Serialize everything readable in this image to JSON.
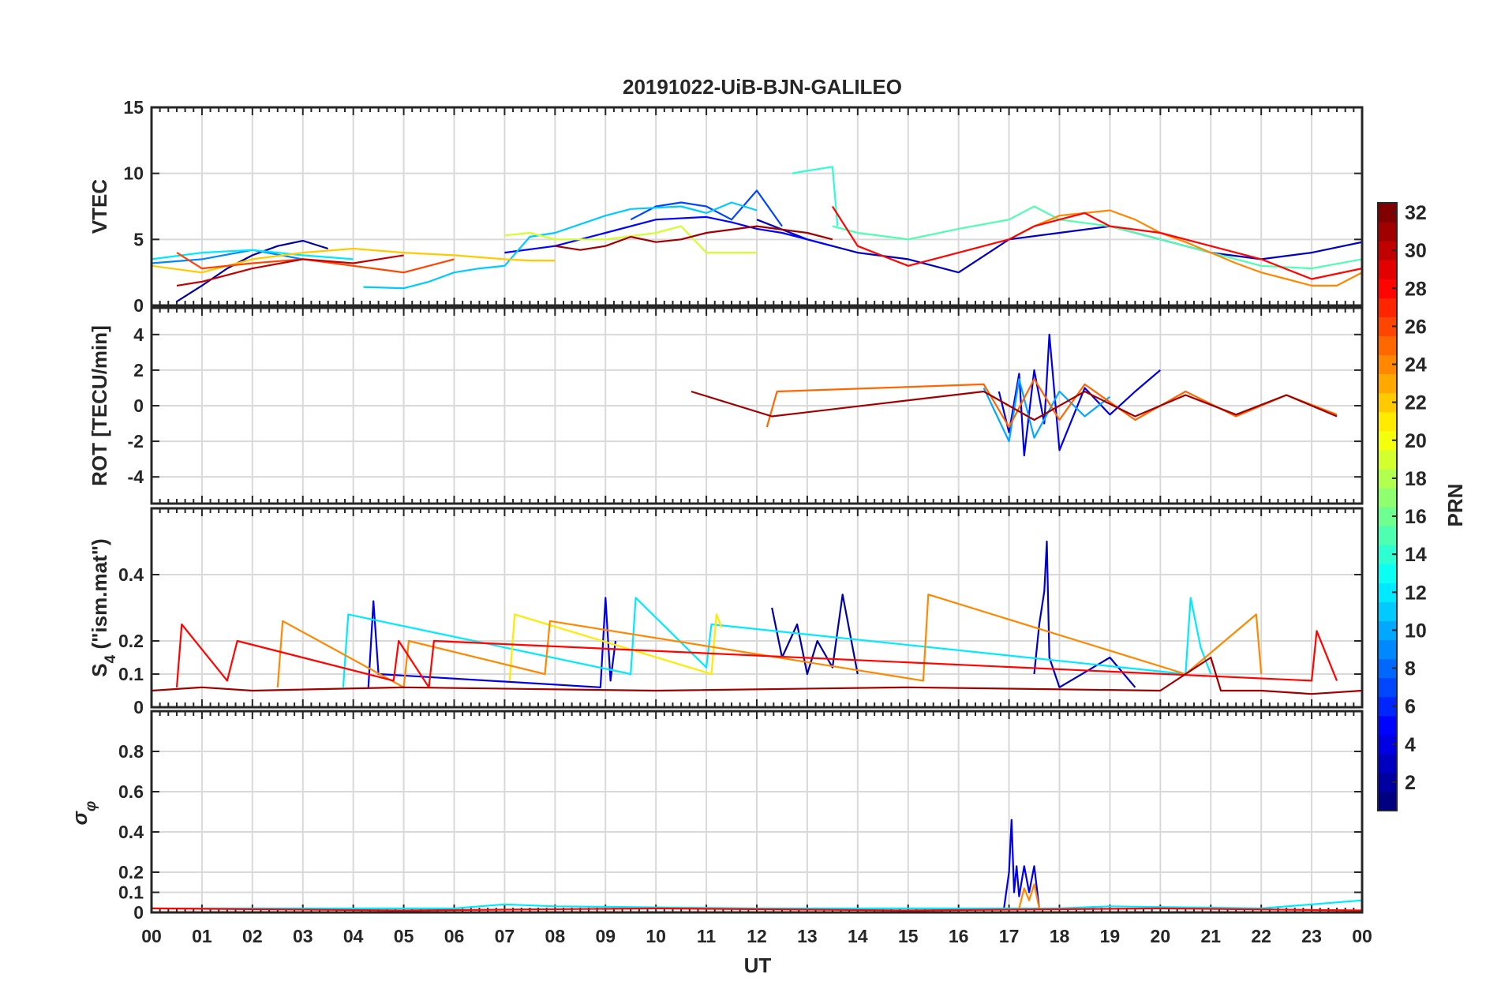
{
  "chart_data": {
    "type": "line",
    "title": "20191022-UiB-BJN-GALILEO",
    "xlabel": "UT",
    "x_ticks": [
      "00",
      "01",
      "02",
      "03",
      "04",
      "05",
      "06",
      "07",
      "08",
      "09",
      "10",
      "11",
      "12",
      "13",
      "14",
      "15",
      "16",
      "17",
      "18",
      "19",
      "20",
      "21",
      "22",
      "23",
      "00"
    ],
    "xlim": [
      0,
      24
    ],
    "grid": true,
    "colorbar": {
      "label": "PRN",
      "range": [
        1,
        32
      ],
      "ticks": [
        "2",
        "4",
        "6",
        "8",
        "10",
        "12",
        "14",
        "16",
        "18",
        "20",
        "22",
        "24",
        "26",
        "28",
        "30",
        "32"
      ],
      "colormap": "jet"
    },
    "panels": [
      {
        "ylabel": "VTEC",
        "ylim": [
          0,
          15
        ],
        "yticks": [
          "0",
          "5",
          "10",
          "15"
        ],
        "series": [
          {
            "prn": 2,
            "x": [
              0.5,
              1.0,
              1.5,
              2.0,
              2.5,
              3.0,
              3.5
            ],
            "y": [
              0.3,
              1.5,
              2.8,
              3.8,
              4.5,
              4.9,
              4.3
            ]
          },
          {
            "prn": 3,
            "x": [
              12.0,
              13.0,
              14.0,
              15.0,
              16.0,
              17.0,
              18.0,
              19.0,
              20.0,
              21.0,
              22.0,
              23.0,
              24.0
            ],
            "y": [
              6.5,
              5.0,
              4.0,
              3.5,
              2.5,
              5.0,
              5.5,
              6.0,
              5.0,
              4.0,
              3.5,
              4.0,
              4.8
            ]
          },
          {
            "prn": 5,
            "x": [
              7.0,
              8.0,
              9.0,
              10.0,
              11.0,
              11.5,
              12.0,
              12.5,
              13.0,
              13.5
            ],
            "y": [
              4.0,
              4.5,
              5.5,
              6.5,
              6.7,
              6.3,
              5.8,
              5.5,
              5.0,
              4.5
            ]
          },
          {
            "prn": 7,
            "x": [
              9.5,
              10.0,
              10.5,
              11.0,
              11.5,
              12.0,
              12.5
            ],
            "y": [
              6.5,
              7.5,
              7.8,
              7.5,
              6.5,
              8.7,
              6.0
            ]
          },
          {
            "prn": 9,
            "x": [
              0.0,
              1.0,
              2.0,
              3.0
            ],
            "y": [
              3.2,
              3.5,
              4.2,
              3.5
            ]
          },
          {
            "prn": 11,
            "x": [
              4.2,
              5.0,
              5.5,
              6.0,
              6.5,
              7.0,
              7.5,
              8.0,
              9.0,
              9.5,
              10.5,
              11.0,
              11.5,
              12.0
            ],
            "y": [
              1.4,
              1.3,
              1.8,
              2.5,
              2.8,
              3.0,
              5.2,
              5.5,
              6.8,
              7.3,
              7.5,
              7.0,
              7.8,
              7.2
            ]
          },
          {
            "prn": 12,
            "x": [
              0.0,
              1.0,
              2.0,
              3.0,
              4.0
            ],
            "y": [
              3.5,
              4.0,
              4.2,
              3.8,
              3.5
            ]
          },
          {
            "prn": 14,
            "x": [
              12.7,
              13.0,
              13.5,
              13.6
            ],
            "y": [
              10.0,
              10.2,
              10.5,
              6.0
            ]
          },
          {
            "prn": 15,
            "x": [
              13.5,
              14.0,
              15.0,
              16.0,
              17.0,
              17.5,
              18.0,
              19.0,
              20.0,
              21.0,
              22.0,
              23.0,
              24.0
            ],
            "y": [
              6.0,
              5.5,
              5.0,
              5.8,
              6.5,
              7.5,
              6.5,
              6.0,
              5.0,
              4.0,
              3.0,
              2.8,
              3.5
            ]
          },
          {
            "prn": 19,
            "x": [
              7.0,
              7.5,
              8.0,
              9.0,
              10.0,
              10.5,
              11.0,
              12.0
            ],
            "y": [
              5.3,
              5.5,
              5.0,
              5.0,
              5.5,
              6.0,
              4.0,
              4.0
            ]
          },
          {
            "prn": 22,
            "x": [
              0.0,
              1.0,
              2.0,
              3.0,
              4.0,
              5.0,
              6.0,
              7.0,
              7.5,
              8.0
            ],
            "y": [
              3.0,
              2.5,
              3.5,
              4.0,
              4.3,
              4.0,
              3.8,
              3.5,
              3.4,
              3.4
            ]
          },
          {
            "prn": 24,
            "x": [
              17.0,
              17.5,
              18.0,
              18.5,
              19.0,
              19.5,
              20.0,
              20.5,
              21.0,
              21.5,
              22.0,
              22.5,
              23.0,
              23.5,
              24.0
            ],
            "y": [
              5.0,
              6.0,
              6.8,
              7.0,
              7.2,
              6.5,
              5.5,
              4.8,
              4.0,
              3.2,
              2.5,
              2.0,
              1.5,
              1.5,
              2.5
            ]
          },
          {
            "prn": 26,
            "x": [
              0.5,
              1.0,
              2.0,
              3.0,
              4.0,
              5.0,
              6.0
            ],
            "y": [
              4.0,
              2.8,
              3.2,
              3.5,
              3.0,
              2.5,
              3.5
            ]
          },
          {
            "prn": 28,
            "x": [
              13.5,
              14.0,
              15.0,
              16.0,
              17.0,
              17.5,
              18.0,
              18.5,
              19.0,
              20.0,
              21.0,
              22.0,
              23.0,
              24.0
            ],
            "y": [
              7.5,
              4.5,
              3.0,
              4.0,
              5.0,
              6.0,
              6.5,
              7.0,
              6.0,
              5.5,
              4.5,
              3.5,
              2.0,
              2.8
            ]
          },
          {
            "prn": 30,
            "x": [
              0.5,
              1.0,
              2.0,
              3.0,
              4.0,
              5.0
            ],
            "y": [
              1.5,
              1.8,
              2.8,
              3.5,
              3.2,
              3.8
            ]
          },
          {
            "prn": 31,
            "x": [
              8.0,
              8.5,
              9.0,
              9.5,
              10.0,
              10.5,
              11.0,
              12.0,
              13.0,
              13.5
            ],
            "y": [
              4.5,
              4.2,
              4.5,
              5.2,
              4.8,
              5.0,
              5.5,
              6.0,
              5.5,
              5.0
            ]
          }
        ]
      },
      {
        "ylabel": "ROT [TECU/min]",
        "ylim": [
          -5.5,
          5.5
        ],
        "yticks": [
          "-4",
          "-2",
          "0",
          "2",
          "4"
        ],
        "series": [
          {
            "prn": 4,
            "x": [
              16.8,
              17.0,
              17.2,
              17.3,
              17.5,
              17.7,
              17.8,
              18.0,
              18.5,
              19.0,
              19.5,
              20.0
            ],
            "y": [
              0.8,
              -1.5,
              1.8,
              -2.8,
              2.0,
              -1.0,
              4.0,
              -2.5,
              1.0,
              -0.5,
              0.8,
              2.0
            ]
          },
          {
            "prn": 10,
            "x": [
              16.5,
              17.0,
              17.2,
              17.5,
              18.0,
              18.5,
              19.0
            ],
            "y": [
              1.0,
              -2.0,
              1.5,
              -1.8,
              0.8,
              -0.6,
              0.5
            ]
          },
          {
            "prn": 25,
            "x": [
              12.2,
              12.4,
              16.5,
              17.0,
              17.5,
              18.0,
              18.5,
              19.5,
              20.5,
              21.5,
              22.5,
              23.5
            ],
            "y": [
              -1.2,
              0.8,
              1.2,
              -1.2,
              1.5,
              -0.8,
              1.2,
              -0.8,
              0.8,
              -0.6,
              0.6,
              -0.5
            ]
          },
          {
            "prn": 31,
            "x": [
              10.7,
              12.3,
              16.5,
              17.5,
              18.5,
              19.5,
              20.5,
              21.5,
              22.5,
              23.5
            ],
            "y": [
              0.8,
              -0.6,
              0.8,
              -0.8,
              0.8,
              -0.6,
              0.6,
              -0.5,
              0.6,
              -0.6
            ]
          }
        ]
      },
      {
        "ylabel": "S4 (\"ism.mat\")",
        "ylim": [
          0,
          0.6
        ],
        "yticks": [
          "0",
          "0.1",
          "0.2",
          "0.4"
        ],
        "series": [
          {
            "prn": 2,
            "x": [
              12.3,
              12.5,
              12.8,
              13.0,
              13.2,
              13.5,
              13.7,
              14.0
            ],
            "y": [
              0.3,
              0.15,
              0.25,
              0.1,
              0.2,
              0.12,
              0.34,
              0.1
            ]
          },
          {
            "prn": 3,
            "x": [
              17.5,
              17.6,
              17.7,
              17.75,
              17.8,
              18.0,
              19.0,
              19.5
            ],
            "y": [
              0.1,
              0.25,
              0.35,
              0.5,
              0.15,
              0.06,
              0.15,
              0.06
            ]
          },
          {
            "prn": 4,
            "x": [
              4.3,
              4.4,
              4.5,
              8.9,
              9.0,
              9.1,
              9.2
            ],
            "y": [
              0.06,
              0.32,
              0.1,
              0.06,
              0.33,
              0.08,
              0.2
            ]
          },
          {
            "prn": 12,
            "x": [
              3.8,
              3.9,
              9.5,
              9.6,
              11.0,
              11.1,
              20.5,
              20.6,
              20.8,
              21.0
            ],
            "y": [
              0.06,
              0.28,
              0.1,
              0.33,
              0.12,
              0.25,
              0.1,
              0.33,
              0.18,
              0.1
            ]
          },
          {
            "prn": 21,
            "x": [
              7.1,
              7.2,
              11.1,
              11.2,
              11.3
            ],
            "y": [
              0.08,
              0.28,
              0.1,
              0.28,
              0.24
            ]
          },
          {
            "prn": 24,
            "x": [
              2.5,
              2.6,
              5.0,
              5.1,
              7.8,
              7.9,
              15.3,
              15.4,
              20.5,
              21.9,
              22.0
            ],
            "y": [
              0.06,
              0.26,
              0.06,
              0.2,
              0.1,
              0.26,
              0.08,
              0.34,
              0.1,
              0.28,
              0.1
            ]
          },
          {
            "prn": 28,
            "x": [
              0.5,
              0.6,
              1.5,
              1.7,
              4.8,
              4.9,
              5.5,
              5.6,
              23.0,
              23.1,
              23.5
            ],
            "y": [
              0.06,
              0.25,
              0.08,
              0.2,
              0.08,
              0.2,
              0.06,
              0.2,
              0.08,
              0.23,
              0.08
            ]
          },
          {
            "prn": 31,
            "x": [
              0.0,
              1.0,
              2.0,
              5.0,
              10.0,
              15.0,
              20.0,
              21.0,
              21.2,
              22.0,
              23.0,
              24.0
            ],
            "y": [
              0.05,
              0.06,
              0.05,
              0.06,
              0.05,
              0.06,
              0.05,
              0.15,
              0.05,
              0.05,
              0.04,
              0.05
            ]
          }
        ]
      },
      {
        "ylabel": "σφ",
        "ylim": [
          0,
          1.0
        ],
        "yticks": [
          "0",
          "0.1",
          "0.2",
          "0.4",
          "0.6",
          "0.8"
        ],
        "series": [
          {
            "prn": 4,
            "x": [
              16.9,
              17.0,
              17.05,
              17.1,
              17.15,
              17.2,
              17.3,
              17.4,
              17.5,
              17.6
            ],
            "y": [
              0.02,
              0.2,
              0.46,
              0.1,
              0.23,
              0.08,
              0.23,
              0.1,
              0.23,
              0.02
            ]
          },
          {
            "prn": 12,
            "x": [
              0.0,
              6.0,
              7.0,
              8.0,
              12.0,
              18.0,
              19.0,
              22.0,
              24.0
            ],
            "y": [
              0.02,
              0.02,
              0.04,
              0.03,
              0.02,
              0.02,
              0.03,
              0.02,
              0.06
            ]
          },
          {
            "prn": 24,
            "x": [
              17.2,
              17.3,
              17.4,
              17.5,
              17.6
            ],
            "y": [
              0.02,
              0.12,
              0.06,
              0.14,
              0.02
            ]
          },
          {
            "prn": 28,
            "x": [
              0.0,
              5.0,
              10.0,
              15.0,
              20.0,
              24.0
            ],
            "y": [
              0.02,
              0.01,
              0.02,
              0.01,
              0.02,
              0.01
            ]
          }
        ]
      }
    ]
  }
}
